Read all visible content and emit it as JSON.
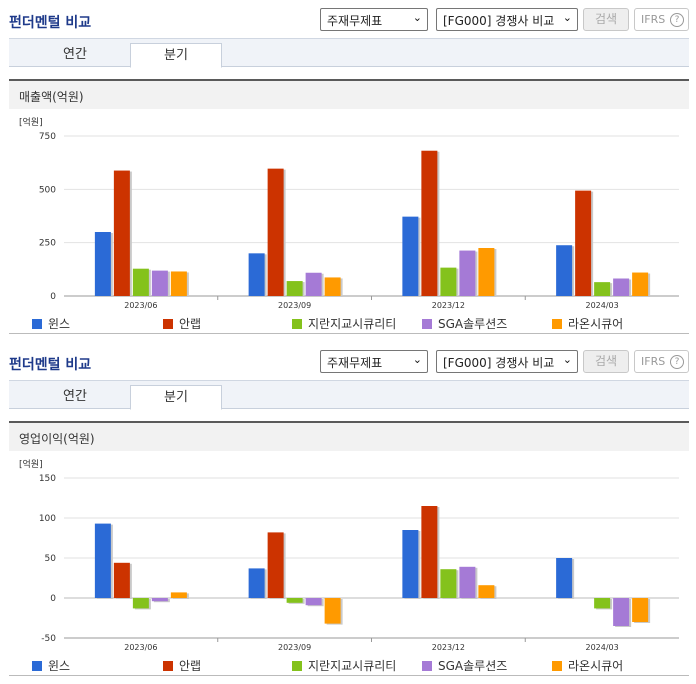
{
  "panels": [
    {
      "title": "펀더멘털 비교",
      "select1": "주재무제표",
      "select2": "[FG000] 경쟁사 비교",
      "search_label": "검색",
      "ifrs_label": "IFRS",
      "tabs": [
        "연간",
        "분기"
      ],
      "active_tab": 1,
      "section_title": "매출액(억원)",
      "unit_label": "[억원]"
    },
    {
      "title": "펀더멘털 비교",
      "select1": "주재무제표",
      "select2": "[FG000] 경쟁사 비교",
      "search_label": "검색",
      "ifrs_label": "IFRS",
      "tabs": [
        "연간",
        "분기"
      ],
      "active_tab": 1,
      "section_title": "영업이익(억원)",
      "unit_label": "[억원]"
    }
  ],
  "colors": [
    "#2b6ad6",
    "#cc3300",
    "#84c21c",
    "#a57ad6",
    "#ff9a00"
  ],
  "chart_data": [
    {
      "type": "bar",
      "categories": [
        "2023/06",
        "2023/09",
        "2023/12",
        "2024/03"
      ],
      "series": [
        {
          "name": "윈스",
          "values": [
            300,
            200,
            372,
            238
          ]
        },
        {
          "name": "안랩",
          "values": [
            588,
            597,
            681,
            494
          ]
        },
        {
          "name": "지란지교시큐리티",
          "values": [
            128,
            70,
            133,
            65
          ]
        },
        {
          "name": "SGA솔루션즈",
          "values": [
            119,
            109,
            213,
            82
          ]
        },
        {
          "name": "라온시큐어",
          "values": [
            115,
            87,
            225,
            110
          ]
        }
      ],
      "ylim": [
        0,
        750
      ],
      "yticks": [
        "0",
        "250",
        "500",
        "750"
      ],
      "ytick_values": [
        0,
        250,
        500,
        750
      ]
    },
    {
      "type": "bar",
      "categories": [
        "2023/06",
        "2023/09",
        "2023/12",
        "2024/03"
      ],
      "series": [
        {
          "name": "윈스",
          "values": [
            93,
            37,
            85,
            50
          ]
        },
        {
          "name": "안랩",
          "values": [
            44,
            82,
            115,
            0
          ]
        },
        {
          "name": "지란지교시큐리티",
          "values": [
            -13,
            -6,
            36,
            -13
          ]
        },
        {
          "name": "SGA솔루션즈",
          "values": [
            -4,
            -9,
            39,
            -35
          ]
        },
        {
          "name": "라온시큐어",
          "values": [
            7,
            -32,
            16,
            -30
          ]
        }
      ],
      "ylim": [
        -50,
        150
      ],
      "yticks": [
        "-50",
        "0",
        "50",
        "100",
        "150"
      ],
      "ytick_values": [
        -50,
        0,
        50,
        100,
        150
      ]
    }
  ]
}
